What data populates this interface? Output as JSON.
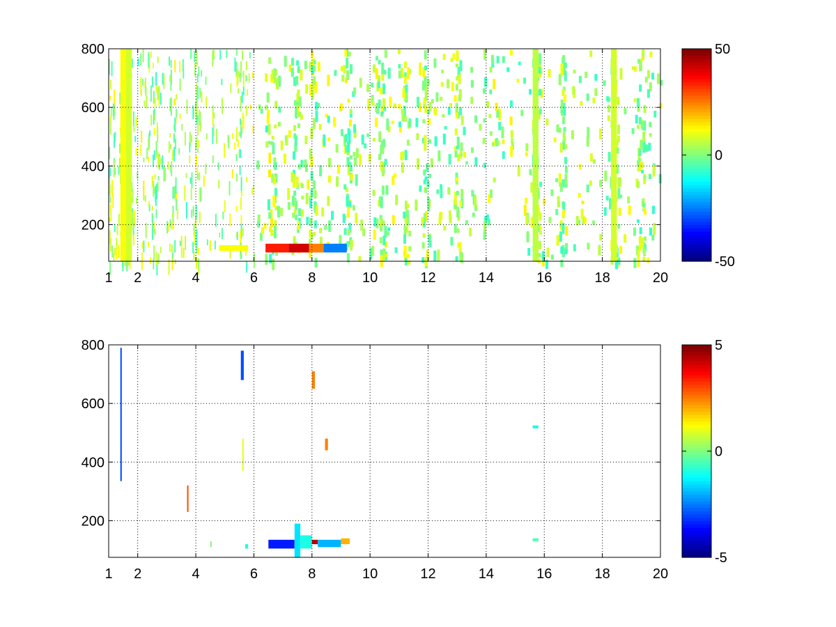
{
  "chart_data": [
    {
      "type": "heatmap",
      "title": "",
      "xlabel": "",
      "ylabel": "",
      "xlim": [
        1,
        20
      ],
      "ylim": [
        75,
        800
      ],
      "x_ticks": [
        "1",
        "2",
        "4",
        "6",
        "8",
        "10",
        "12",
        "14",
        "16",
        "18",
        "20"
      ],
      "y_ticks": [
        "200",
        "400",
        "600",
        "800"
      ],
      "grid": true,
      "colormap": "jet",
      "colorbar": {
        "min": -50,
        "max": 50,
        "ticks": [
          "50",
          "0",
          "-50"
        ]
      },
      "notes": "sparse scatter of cells across the whole field; densest streaks near x=1.5, 4, 5.5, 15.7, 18.4; strong positive band near y=120, x=6.5-8.5 (values up to ~40) with negative values ~-25 at x=8.5-9.2",
      "regions": [
        {
          "x": [
            1.4,
            1.6
          ],
          "y": [
            75,
            800
          ],
          "value": 12
        },
        {
          "x": [
            1.6,
            1.8
          ],
          "y": [
            75,
            800
          ],
          "value": 8
        },
        {
          "x": [
            6.4,
            7.2
          ],
          "y": [
            105,
            135
          ],
          "value": 35
        },
        {
          "x": [
            7.2,
            7.9
          ],
          "y": [
            105,
            135
          ],
          "value": 42
        },
        {
          "x": [
            7.9,
            8.4
          ],
          "y": [
            105,
            135
          ],
          "value": 25
        },
        {
          "x": [
            8.4,
            9.2
          ],
          "y": [
            105,
            135
          ],
          "value": -25
        },
        {
          "x": [
            4.8,
            5.8
          ],
          "y": [
            110,
            130
          ],
          "value": 12
        },
        {
          "x": [
            15.6,
            15.8
          ],
          "y": [
            75,
            800
          ],
          "value": 6
        },
        {
          "x": [
            18.3,
            18.5
          ],
          "y": [
            75,
            800
          ],
          "value": 8
        }
      ]
    },
    {
      "type": "heatmap",
      "title": "",
      "xlabel": "",
      "ylabel": "",
      "xlim": [
        1,
        20
      ],
      "ylim": [
        75,
        800
      ],
      "x_ticks": [
        "1",
        "2",
        "4",
        "6",
        "8",
        "10",
        "12",
        "14",
        "16",
        "18",
        "20"
      ],
      "y_ticks": [
        "200",
        "400",
        "600",
        "800"
      ],
      "grid": true,
      "colormap": "jet",
      "colorbar": {
        "min": -5,
        "max": 5,
        "ticks": [
          "5",
          "0",
          "-5"
        ]
      },
      "regions": [
        {
          "x": [
            1.4,
            1.45
          ],
          "y": [
            335,
            790
          ],
          "value": -3
        },
        {
          "x": [
            5.55,
            5.65
          ],
          "y": [
            680,
            780
          ],
          "value": -3
        },
        {
          "x": [
            5.6,
            5.65
          ],
          "y": [
            370,
            480
          ],
          "value": 1
        },
        {
          "x": [
            3.7,
            3.75
          ],
          "y": [
            230,
            320
          ],
          "value": 3
        },
        {
          "x": [
            4.5,
            4.55
          ],
          "y": [
            110,
            130
          ],
          "value": 0
        },
        {
          "x": [
            5.7,
            5.8
          ],
          "y": [
            105,
            120
          ],
          "value": -1
        },
        {
          "x": [
            6.5,
            7.4
          ],
          "y": [
            105,
            135
          ],
          "value": -3.5
        },
        {
          "x": [
            7.4,
            7.6
          ],
          "y": [
            75,
            190
          ],
          "value": -1.5
        },
        {
          "x": [
            7.6,
            8.0
          ],
          "y": [
            105,
            150
          ],
          "value": -1
        },
        {
          "x": [
            8.0,
            8.2
          ],
          "y": [
            120,
            135
          ],
          "value": 4.5
        },
        {
          "x": [
            8.2,
            9.0
          ],
          "y": [
            110,
            135
          ],
          "value": -2
        },
        {
          "x": [
            9.0,
            9.3
          ],
          "y": [
            120,
            140
          ],
          "value": 2
        },
        {
          "x": [
            8.0,
            8.1
          ],
          "y": [
            650,
            710
          ],
          "value": 2.5
        },
        {
          "x": [
            8.45,
            8.55
          ],
          "y": [
            440,
            480
          ],
          "value": 2.5
        },
        {
          "x": [
            15.6,
            15.8
          ],
          "y": [
            515,
            525
          ],
          "value": -1
        },
        {
          "x": [
            15.6,
            15.8
          ],
          "y": [
            130,
            140
          ],
          "value": -0.5
        }
      ]
    }
  ]
}
